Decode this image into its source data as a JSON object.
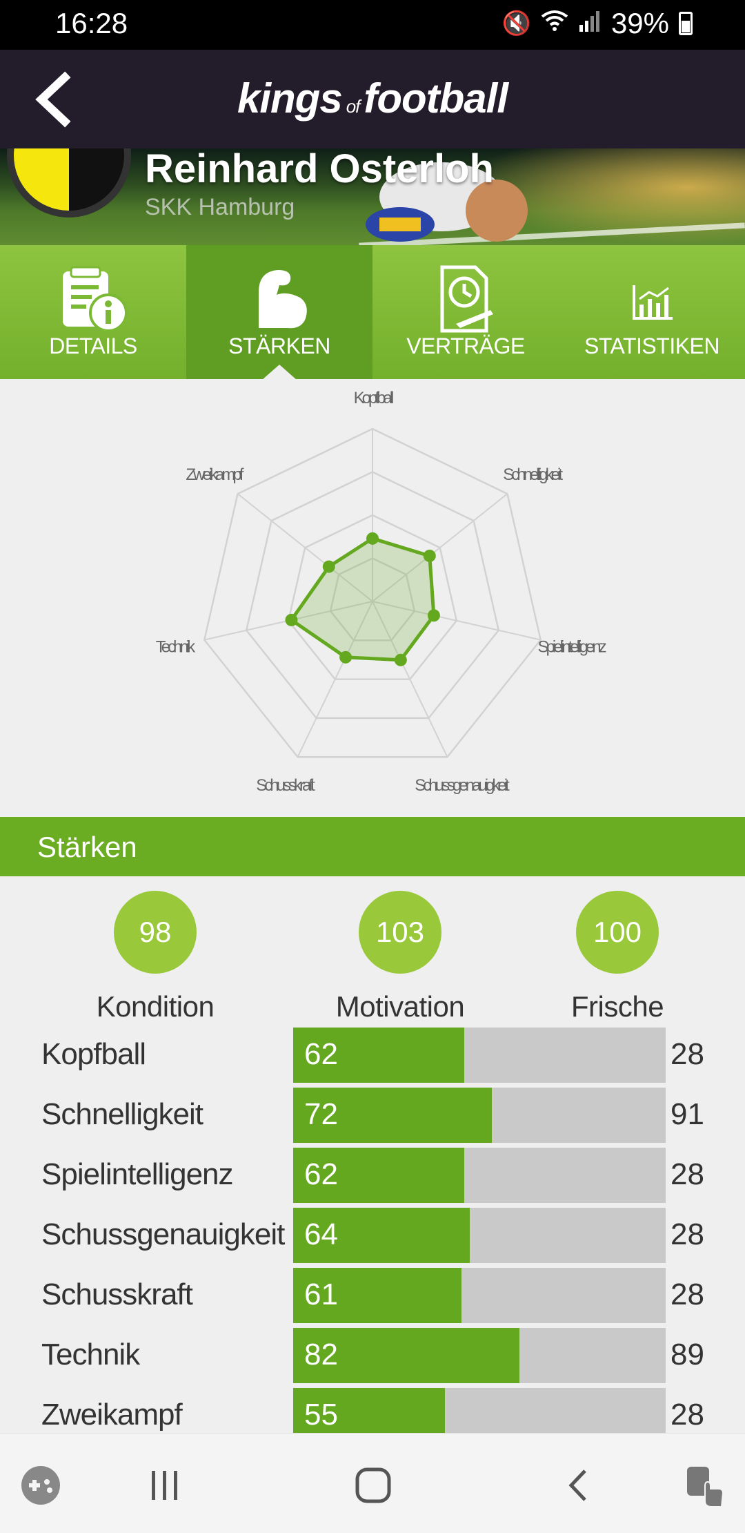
{
  "status_bar": {
    "time": "16:28",
    "battery": "39%"
  },
  "app": {
    "logo_part1": "kings",
    "logo_part2": "of",
    "logo_part3": "football"
  },
  "player": {
    "name": "Reinhard Osterloh",
    "club": "SKK Hamburg"
  },
  "tabs": [
    {
      "label": "DETAILS",
      "icon": "document-info-icon",
      "active": false
    },
    {
      "label": "STÄRKEN",
      "icon": "muscle-arm-icon",
      "active": true
    },
    {
      "label": "VERTRÄGE",
      "icon": "contract-clock-icon",
      "active": false
    },
    {
      "label": "STATISTIKEN",
      "icon": "bar-chart-icon",
      "active": false
    }
  ],
  "chart_data": {
    "type": "radar",
    "axes": [
      "Kopfball",
      "Schnelligkeit",
      "Spielintelligenz",
      "Schussgenauigkeit",
      "Schusskraft",
      "Technik",
      "Zweikampf"
    ],
    "values": [
      62,
      72,
      62,
      64,
      61,
      82,
      55
    ],
    "range": [
      0,
      170
    ],
    "rings": 4,
    "colors": {
      "line": "#64a81f",
      "fill": "rgba(100,168,31,0.22)",
      "grid": "#d2d2d2"
    }
  },
  "section": {
    "title": "Stärken"
  },
  "summary": [
    {
      "value": "98",
      "label": "Kondition"
    },
    {
      "value": "103",
      "label": "Motivation"
    },
    {
      "value": "100",
      "label": "Frische"
    }
  ],
  "attributes": [
    {
      "name": "Kopfball",
      "value": 62,
      "potential": "28"
    },
    {
      "name": "Schnelligkeit",
      "value": 72,
      "potential": "91"
    },
    {
      "name": "Spielintelligenz",
      "value": 62,
      "potential": "28"
    },
    {
      "name": "Schussgenauigkeit",
      "value": 64,
      "potential": "28"
    },
    {
      "name": "Schusskraft",
      "value": 61,
      "potential": "28"
    },
    {
      "name": "Technik",
      "value": 82,
      "potential": "89"
    },
    {
      "name": "Zweikampf",
      "value": 55,
      "potential": "28"
    }
  ],
  "bar_max": 135,
  "colors": {
    "brand_green": "#6aad23",
    "appbar": "#231c2b"
  }
}
